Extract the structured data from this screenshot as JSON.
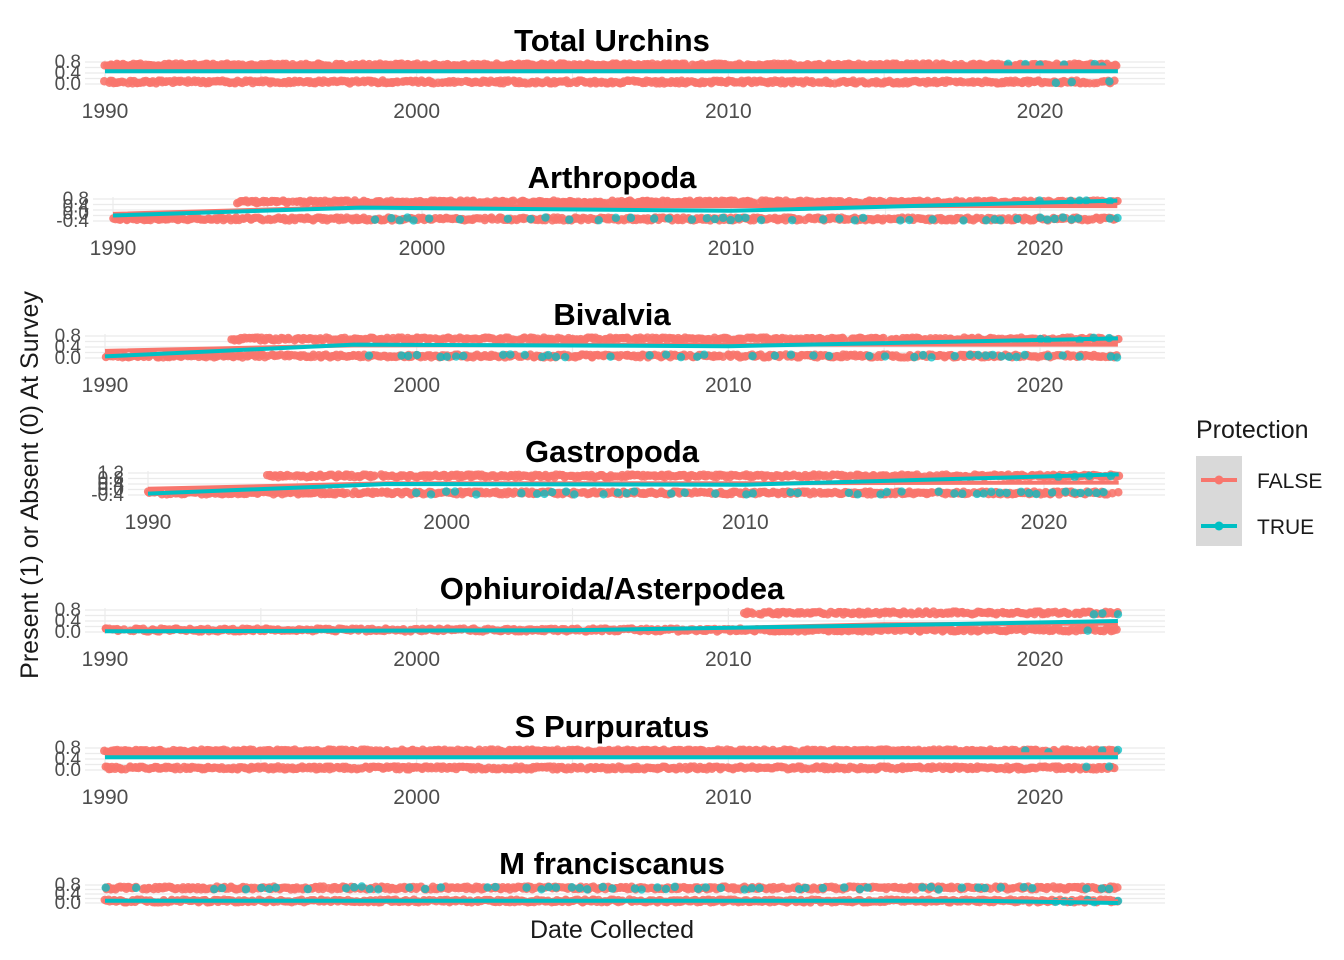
{
  "figure": {
    "ylabel": "Present (1) or Absent (0) At Survey",
    "xlabel": "Date Collected"
  },
  "legend": {
    "title": "Protection",
    "position": "right",
    "items": [
      {
        "label": "FALSE",
        "color": "#F8766D"
      },
      {
        "label": "TRUE",
        "color": "#00BFC4"
      }
    ]
  },
  "chart_data": [
    {
      "type": "scatter",
      "title": "Total Urchins",
      "xlim": [
        1990,
        2022.5
      ],
      "xticks": [
        1990,
        2000,
        2010,
        2020
      ],
      "ylim": [
        0,
        1
      ],
      "yticks": [
        "0.0",
        "0.4",
        "0.8"
      ],
      "grid": true,
      "series": [
        {
          "name": "FALSE",
          "color": "#F8766D",
          "present_range": [
            1990,
            2022.5
          ],
          "absent_range": [
            1990,
            2022.5
          ],
          "trend": [
            [
              1990,
              0.75
            ],
            [
              2022.5,
              0.75
            ]
          ]
        },
        {
          "name": "TRUE",
          "color": "#00BFC4",
          "present_range": [
            2019,
            2022.5
          ],
          "absent_range": [
            2020.5,
            2022.5
          ],
          "trend": [
            [
              1990,
              0.58
            ],
            [
              2022.5,
              0.58
            ]
          ]
        }
      ]
    },
    {
      "type": "scatter",
      "title": "Arthropoda",
      "xlim": [
        1990,
        2022.5
      ],
      "xticks": [
        1990,
        2000,
        2010,
        2020
      ],
      "ylim": [
        -0.4,
        1
      ],
      "yticks": [
        "-0.4",
        "0.0",
        "0.4",
        "0.8"
      ],
      "grid": true,
      "series": [
        {
          "name": "FALSE",
          "color": "#F8766D",
          "present_range": [
            1994,
            2022.5
          ],
          "absent_range": [
            1990,
            2022.5
          ],
          "trend": [
            [
              1990,
              0.05
            ],
            [
              1998,
              0.5
            ],
            [
              2010,
              0.55
            ],
            [
              2022.5,
              0.55
            ]
          ]
        },
        {
          "name": "TRUE",
          "color": "#00BFC4",
          "present_range": [
            2020,
            2022.5
          ],
          "absent_range": [
            1998,
            2022.5
          ],
          "trend": [
            [
              1990,
              -0.05
            ],
            [
              1998,
              0.45
            ],
            [
              2010,
              0.25
            ],
            [
              2022.5,
              0.9
            ]
          ]
        }
      ]
    },
    {
      "type": "scatter",
      "title": "Bivalvia",
      "xlim": [
        1990,
        2022.5
      ],
      "xticks": [
        1990,
        2000,
        2010,
        2020
      ],
      "ylim": [
        -0.4,
        1
      ],
      "yticks": [
        "0.0",
        "0.4",
        "0.8"
      ],
      "grid": true,
      "series": [
        {
          "name": "FALSE",
          "color": "#F8766D",
          "present_range": [
            1994,
            2022.5
          ],
          "absent_range": [
            1990,
            2022.5
          ],
          "trend": [
            [
              1990,
              0.05
            ],
            [
              1998,
              0.4
            ],
            [
              2010,
              0.45
            ],
            [
              2022.5,
              0.45
            ]
          ]
        },
        {
          "name": "TRUE",
          "color": "#00BFC4",
          "present_range": [
            2020,
            2022.5
          ],
          "absent_range": [
            1998,
            2022.5
          ],
          "trend": [
            [
              1990,
              -0.3
            ],
            [
              1998,
              0.45
            ],
            [
              2010,
              0.35
            ],
            [
              2022.5,
              0.85
            ]
          ]
        }
      ]
    },
    {
      "type": "scatter",
      "title": "Gastropoda",
      "xlim": [
        1990,
        2022.5
      ],
      "xticks": [
        1990,
        2000,
        2010,
        2020
      ],
      "ylim": [
        -0.4,
        1.2
      ],
      "yticks": [
        "-0.4",
        "0.0",
        "0.4",
        "0.8",
        "1.2"
      ],
      "grid": true,
      "series": [
        {
          "name": "FALSE",
          "color": "#F8766D",
          "present_range": [
            1994,
            2022.5
          ],
          "absent_range": [
            1990,
            2022.5
          ],
          "trend": [
            [
              1990,
              0.05
            ],
            [
              1998,
              0.45
            ],
            [
              2010,
              0.45
            ],
            [
              2022.5,
              0.5
            ]
          ]
        },
        {
          "name": "TRUE",
          "color": "#00BFC4",
          "present_range": [
            2020,
            2022.5
          ],
          "absent_range": [
            1998,
            2022.5
          ],
          "trend": [
            [
              1990,
              -0.3
            ],
            [
              1998,
              0.4
            ],
            [
              2010,
              0.35
            ],
            [
              2022.5,
              1.1
            ]
          ]
        }
      ]
    },
    {
      "type": "scatter",
      "title": "Ophiuroida/Asterpodea",
      "xlim": [
        1990,
        2022.5
      ],
      "xticks": [
        1990,
        2000,
        2010,
        2020
      ],
      "ylim": [
        0,
        1
      ],
      "yticks": [
        "0.0",
        "0.4",
        "0.8"
      ],
      "grid": true,
      "series": [
        {
          "name": "FALSE",
          "color": "#F8766D",
          "present_range": [
            2010.5,
            2022.5
          ],
          "absent_range": [
            1990,
            2022.5
          ],
          "trend": [
            [
              1990,
              0.05
            ],
            [
              2008,
              0.12
            ],
            [
              2015,
              0.35
            ],
            [
              2022.5,
              0.38
            ]
          ]
        },
        {
          "name": "TRUE",
          "color": "#00BFC4",
          "present_range": [
            2021,
            2022.5
          ],
          "absent_range": [
            2020.5,
            2022.5
          ],
          "trend": [
            [
              1990,
              0.03
            ],
            [
              2005,
              0.08
            ],
            [
              2015,
              0.3
            ],
            [
              2022.5,
              0.5
            ]
          ]
        }
      ]
    },
    {
      "type": "scatter",
      "title": "S Purpuratus",
      "xlim": [
        1990,
        2022.5
      ],
      "xticks": [
        1990,
        2000,
        2010,
        2020
      ],
      "ylim": [
        0,
        1
      ],
      "yticks": [
        "0.0",
        "0.4",
        "0.8"
      ],
      "grid": true,
      "series": [
        {
          "name": "FALSE",
          "color": "#F8766D",
          "present_range": [
            1990,
            2022.5
          ],
          "absent_range": [
            1990,
            2022.5
          ],
          "trend": [
            [
              1990,
              0.72
            ],
            [
              2022.5,
              0.72
            ]
          ]
        },
        {
          "name": "TRUE",
          "color": "#00BFC4",
          "present_range": [
            2019,
            2022.5
          ],
          "absent_range": [
            2020.5,
            2022.5
          ],
          "trend": [
            [
              1990,
              0.58
            ],
            [
              2022.5,
              0.58
            ]
          ]
        }
      ]
    },
    {
      "type": "scatter",
      "title": "M franciscanus",
      "xlim": [
        1990,
        2022.5
      ],
      "xticks": [],
      "ylim": [
        0,
        1
      ],
      "yticks": [
        "0.0",
        "0.4",
        "0.8"
      ],
      "grid": true,
      "series": [
        {
          "name": "FALSE",
          "color": "#F8766D",
          "present_range": [
            1990,
            2022.5
          ],
          "absent_range": [
            1990,
            2022.5
          ],
          "trend": [
            [
              1990,
              0.1
            ],
            [
              2022.5,
              0.1
            ]
          ]
        },
        {
          "name": "TRUE",
          "color": "#00BFC4",
          "present_range": [
            1990,
            2022.5
          ],
          "absent_range": [
            2020.5,
            2022.5
          ],
          "trend": [
            [
              1990,
              0.12
            ],
            [
              2018,
              0.12
            ],
            [
              2022.5,
              0.0
            ]
          ]
        }
      ]
    }
  ]
}
